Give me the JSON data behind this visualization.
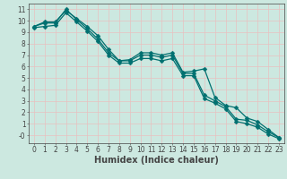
{
  "xlabel": "Humidex (Indice chaleur)",
  "bg_color": "#cce8e0",
  "grid_color": "#e8c0c0",
  "line_color": "#007070",
  "line1": {
    "x": [
      0,
      1,
      2,
      3,
      4,
      5,
      6,
      7,
      8,
      9,
      10,
      11,
      12,
      13,
      14,
      15,
      16,
      17,
      18,
      19,
      20,
      21,
      22,
      23
    ],
    "y": [
      9.5,
      9.9,
      9.9,
      10.9,
      10.2,
      9.5,
      8.7,
      7.5,
      6.5,
      6.6,
      7.2,
      7.2,
      7.0,
      7.2,
      5.5,
      5.6,
      5.8,
      3.3,
      2.6,
      2.4,
      1.5,
      1.2,
      0.5,
      -0.2
    ]
  },
  "line2": {
    "x": [
      0,
      1,
      2,
      3,
      4,
      5,
      6,
      7,
      8,
      9,
      10,
      11,
      12,
      13,
      14,
      15,
      16,
      17,
      18,
      19,
      20,
      21,
      22,
      23
    ],
    "y": [
      9.5,
      9.8,
      9.8,
      11.0,
      10.1,
      9.3,
      8.4,
      7.2,
      6.5,
      6.5,
      7.0,
      7.0,
      6.8,
      7.0,
      5.4,
      5.4,
      3.5,
      3.0,
      2.5,
      1.4,
      1.3,
      0.9,
      0.3,
      -0.2
    ]
  },
  "line3": {
    "x": [
      0,
      1,
      2,
      3,
      4,
      5,
      6,
      7,
      8,
      9,
      10,
      11,
      12,
      13,
      14,
      15,
      16,
      17,
      18,
      19,
      20,
      21,
      22,
      23
    ],
    "y": [
      9.4,
      9.5,
      9.6,
      10.7,
      9.9,
      9.1,
      8.2,
      7.0,
      6.3,
      6.3,
      6.7,
      6.7,
      6.5,
      6.7,
      5.2,
      5.2,
      3.2,
      2.8,
      2.3,
      1.2,
      1.0,
      0.7,
      0.1,
      -0.3
    ]
  },
  "xlim": [
    -0.5,
    23.5
  ],
  "ylim": [
    -0.7,
    11.5
  ],
  "yticks": [
    0,
    1,
    2,
    3,
    4,
    5,
    6,
    7,
    8,
    9,
    10,
    11
  ],
  "ytick_labels": [
    "-0",
    "1",
    "2",
    "3",
    "4",
    "5",
    "6",
    "7",
    "8",
    "9",
    "10",
    "11"
  ],
  "xticks": [
    0,
    1,
    2,
    3,
    4,
    5,
    6,
    7,
    8,
    9,
    10,
    11,
    12,
    13,
    14,
    15,
    16,
    17,
    18,
    19,
    20,
    21,
    22,
    23
  ],
  "marker_size": 2.5,
  "line_width": 0.9,
  "font_size": 6.5,
  "tick_labelsize": 5.5,
  "axis_color": "#444444",
  "xlabel_fontsize": 7,
  "xlabel_fontweight": "bold"
}
